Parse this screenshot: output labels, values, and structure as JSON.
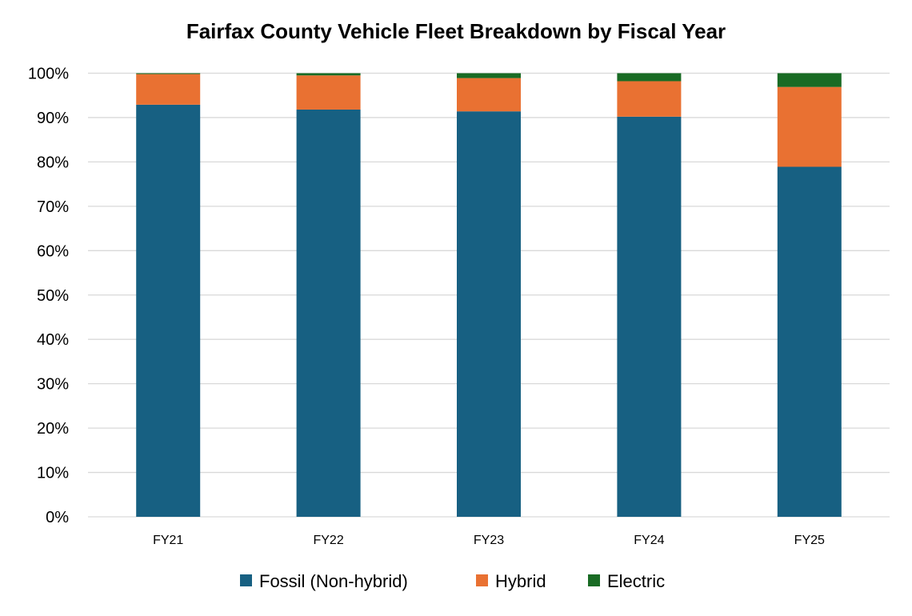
{
  "chart_data": {
    "type": "bar",
    "stacked": true,
    "title": "Fairfax County Vehicle Fleet Breakdown by Fiscal Year",
    "xlabel": "",
    "ylabel": "",
    "ylim": [
      0,
      100
    ],
    "yticks": [
      "0%",
      "10%",
      "20%",
      "30%",
      "40%",
      "50%",
      "60%",
      "70%",
      "80%",
      "90%",
      "100%"
    ],
    "grid": true,
    "legend_position": "bottom",
    "categories": [
      "FY21",
      "FY22",
      "FY23",
      "FY24",
      "FY25"
    ],
    "series": [
      {
        "name": "Fossil (Non-hybrid)",
        "color": "#176082",
        "values": [
          92.9,
          91.8,
          91.4,
          90.2,
          78.9
        ]
      },
      {
        "name": "Hybrid",
        "color": "#E97132",
        "values": [
          6.9,
          7.7,
          7.5,
          8.0,
          18.0
        ]
      },
      {
        "name": "Electric",
        "color": "#196B24",
        "values": [
          0.2,
          0.5,
          1.1,
          1.8,
          3.1
        ]
      }
    ]
  }
}
